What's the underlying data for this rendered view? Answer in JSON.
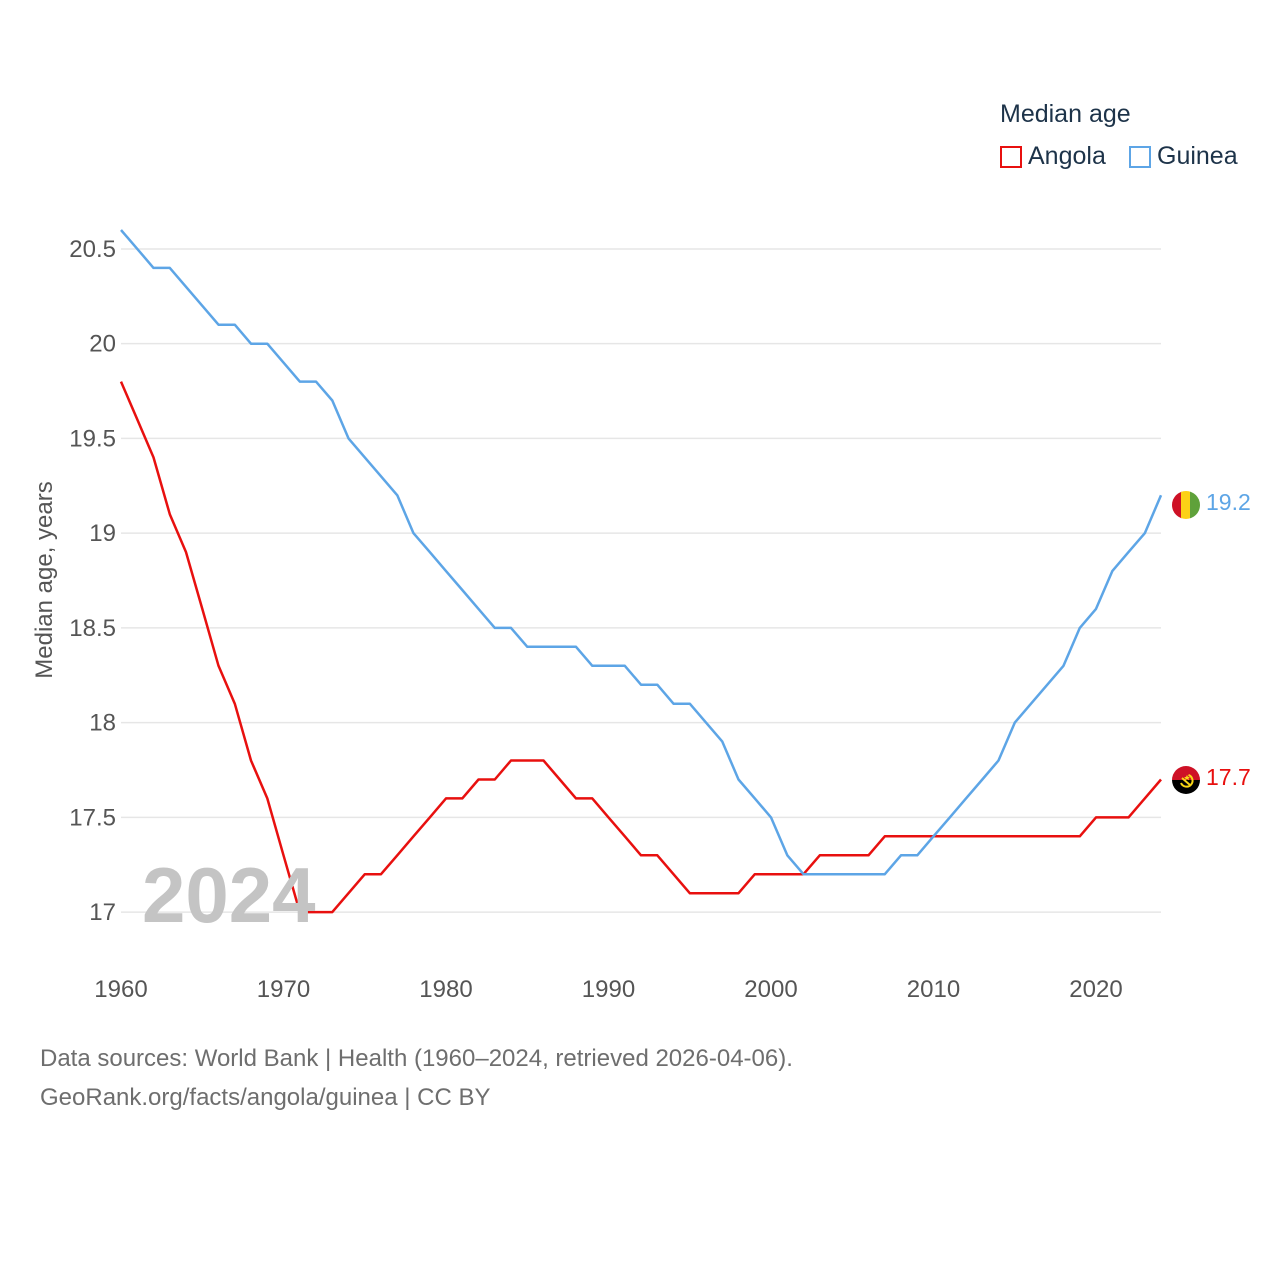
{
  "legend": {
    "title": "Median age",
    "items": [
      {
        "name": "Angola",
        "color": "#e8100f"
      },
      {
        "name": "Guinea",
        "color": "#5da5e6"
      }
    ]
  },
  "year_watermark": "2024",
  "source": {
    "line1": "Data sources: World Bank | Health (1960–2024, retrieved 2026-04-06).",
    "line2": "GeoRank.org/facts/angola/guinea | CC BY"
  },
  "end_labels": {
    "angola": "17.7",
    "guinea": "19.2"
  },
  "flags": {
    "angola": "angola-flag-icon",
    "guinea": "guinea-flag-icon"
  },
  "chart_data": {
    "type": "line",
    "title": "Median age",
    "xlabel": "",
    "ylabel": "Median age, years",
    "xlim": [
      1960,
      2024
    ],
    "ylim": [
      16.8,
      20.6
    ],
    "xticks": [
      1960,
      1970,
      1980,
      1990,
      2000,
      2010,
      2020
    ],
    "xtick_labels": [
      "1960",
      "1970",
      "1980",
      "1990",
      "2000",
      "2010",
      "2020"
    ],
    "yticks": [
      17,
      17.5,
      18,
      18.5,
      19,
      19.5,
      20,
      20.5
    ],
    "ytick_labels": [
      "17",
      "17.5",
      "18",
      "18.5",
      "19",
      "19.5",
      "20",
      "20.5"
    ],
    "grid": true,
    "x": [
      1960,
      1961,
      1962,
      1963,
      1964,
      1965,
      1966,
      1967,
      1968,
      1969,
      1970,
      1971,
      1972,
      1973,
      1974,
      1975,
      1976,
      1977,
      1978,
      1979,
      1980,
      1981,
      1982,
      1983,
      1984,
      1985,
      1986,
      1987,
      1988,
      1989,
      1990,
      1991,
      1992,
      1993,
      1994,
      1995,
      1996,
      1997,
      1998,
      1999,
      2000,
      2001,
      2002,
      2003,
      2004,
      2005,
      2006,
      2007,
      2008,
      2009,
      2010,
      2011,
      2012,
      2013,
      2014,
      2015,
      2016,
      2017,
      2018,
      2019,
      2020,
      2021,
      2022,
      2023,
      2024
    ],
    "series": [
      {
        "name": "Angola",
        "color": "#e8100f",
        "values": [
          19.8,
          19.6,
          19.4,
          19.1,
          18.9,
          18.6,
          18.3,
          18.1,
          17.8,
          17.6,
          17.3,
          17.0,
          17.0,
          17.0,
          17.1,
          17.2,
          17.2,
          17.3,
          17.4,
          17.5,
          17.6,
          17.6,
          17.7,
          17.7,
          17.8,
          17.8,
          17.8,
          17.7,
          17.6,
          17.6,
          17.5,
          17.4,
          17.3,
          17.3,
          17.2,
          17.1,
          17.1,
          17.1,
          17.1,
          17.2,
          17.2,
          17.2,
          17.2,
          17.3,
          17.3,
          17.3,
          17.3,
          17.4,
          17.4,
          17.4,
          17.4,
          17.4,
          17.4,
          17.4,
          17.4,
          17.4,
          17.4,
          17.4,
          17.4,
          17.4,
          17.5,
          17.5,
          17.5,
          17.6,
          17.7
        ]
      },
      {
        "name": "Guinea",
        "color": "#5da5e6",
        "values": [
          20.6,
          20.5,
          20.4,
          20.4,
          20.3,
          20.2,
          20.1,
          20.1,
          20.0,
          20.0,
          19.9,
          19.8,
          19.8,
          19.7,
          19.5,
          19.4,
          19.3,
          19.2,
          19.0,
          18.9,
          18.8,
          18.7,
          18.6,
          18.5,
          18.5,
          18.4,
          18.4,
          18.4,
          18.4,
          18.3,
          18.3,
          18.3,
          18.2,
          18.2,
          18.1,
          18.1,
          18.0,
          17.9,
          17.7,
          17.6,
          17.5,
          17.3,
          17.2,
          17.2,
          17.2,
          17.2,
          17.2,
          17.2,
          17.3,
          17.3,
          17.4,
          17.5,
          17.6,
          17.7,
          17.8,
          18.0,
          18.1,
          18.2,
          18.3,
          18.5,
          18.6,
          18.8,
          18.9,
          19.0,
          19.2
        ]
      }
    ]
  }
}
